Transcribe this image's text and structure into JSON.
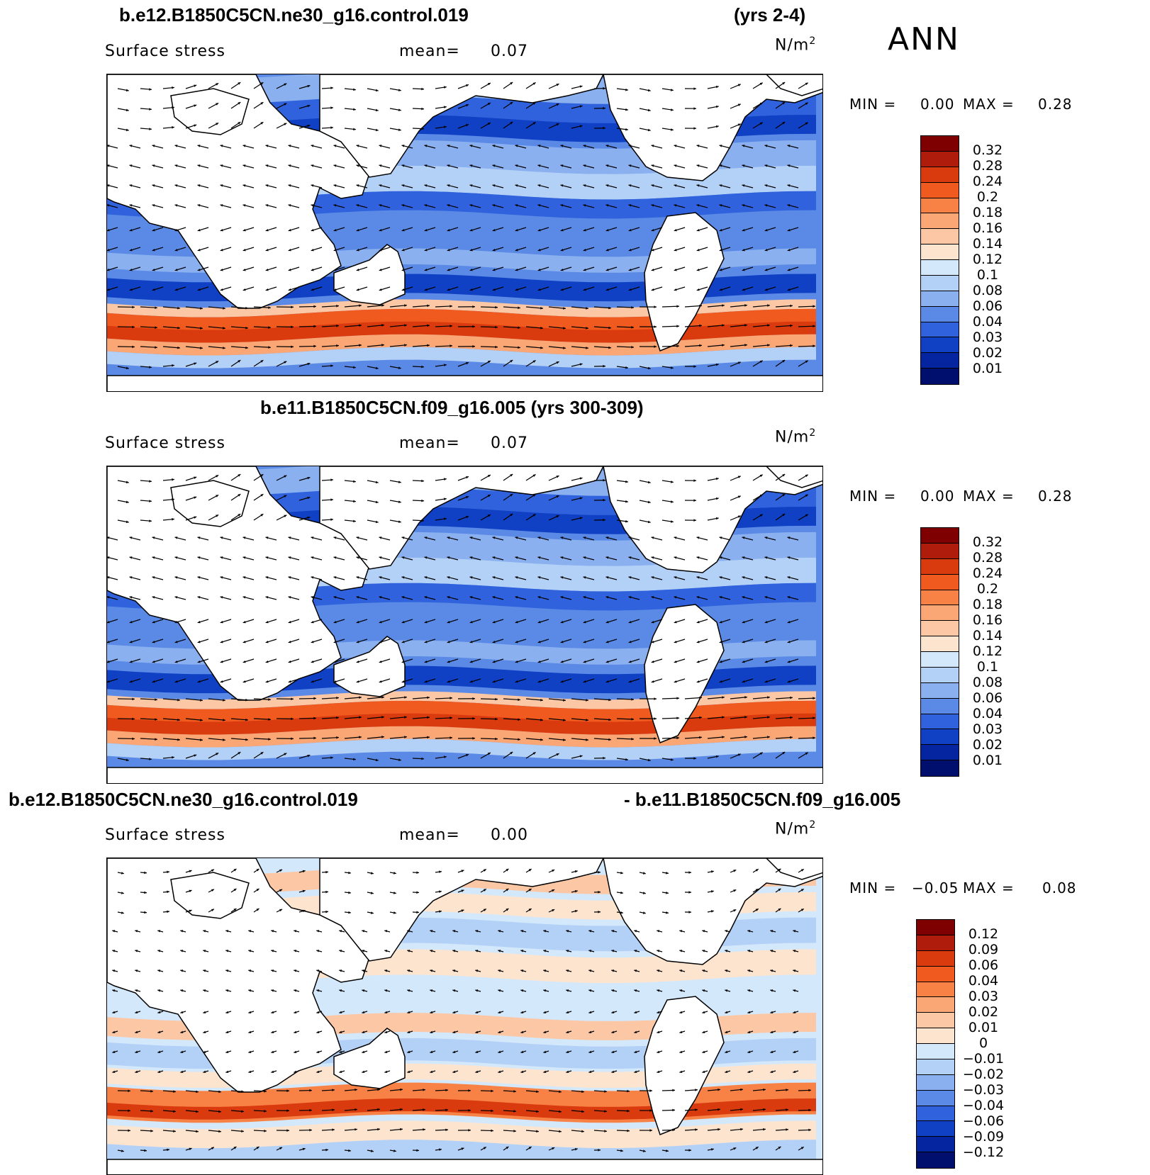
{
  "header": {
    "case1_title": "b.e12.B1850C5CN.ne30_g16.control.019",
    "case1_years": "(yrs 2-4)",
    "season": "ANN"
  },
  "panels": [
    {
      "id": "p1",
      "variable": "Surface stress",
      "mean_label": "mean=",
      "mean_value": "0.07",
      "units": "N/m",
      "units_sup": "2",
      "min_label": "MIN =",
      "min_value": "0.00",
      "max_label": "MAX =",
      "max_value": "0.28",
      "colorbar_ticks": [
        "0.32",
        "0.28",
        "0.24",
        "0.2",
        "0.18",
        "0.16",
        "0.14",
        "0.12",
        "0.1",
        "0.08",
        "0.06",
        "0.04",
        "0.03",
        "0.02",
        "0.01"
      ],
      "colorbar_colors": [
        "#7f0000",
        "#b01c0c",
        "#d93a0e",
        "#f05a1f",
        "#f88245",
        "#fba775",
        "#fcc7a4",
        "#fde4cf",
        "#d4e8fb",
        "#b3d0f6",
        "#8ab0ef",
        "#5a8ae6",
        "#2f62dc",
        "#1040c4",
        "#0424a0",
        "#000e6e"
      ],
      "colormap": "sequential-blue-to-red"
    },
    {
      "id": "p2",
      "title": "b.e11.B1850C5CN.f09_g16.005 (yrs 300-309)",
      "variable": "Surface stress",
      "mean_label": "mean=",
      "mean_value": "0.07",
      "units": "N/m",
      "units_sup": "2",
      "min_label": "MIN =",
      "min_value": "0.00",
      "max_label": "MAX =",
      "max_value": "0.28",
      "colorbar_ticks": [
        "0.32",
        "0.28",
        "0.24",
        "0.2",
        "0.18",
        "0.16",
        "0.14",
        "0.12",
        "0.1",
        "0.08",
        "0.06",
        "0.04",
        "0.03",
        "0.02",
        "0.01"
      ],
      "colorbar_colors": [
        "#7f0000",
        "#b01c0c",
        "#d93a0e",
        "#f05a1f",
        "#f88245",
        "#fba775",
        "#fcc7a4",
        "#fde4cf",
        "#d4e8fb",
        "#b3d0f6",
        "#8ab0ef",
        "#5a8ae6",
        "#2f62dc",
        "#1040c4",
        "#0424a0",
        "#000e6e"
      ],
      "colormap": "sequential-blue-to-red"
    },
    {
      "id": "p3",
      "title_left": "b.e12.B1850C5CN.ne30_g16.control.019",
      "title_right": "- b.e11.B1850C5CN.f09_g16.005",
      "variable": "Surface stress",
      "mean_label": "mean=",
      "mean_value": "0.00",
      "units": "N/m",
      "units_sup": "2",
      "min_label": "MIN =",
      "min_value": "−0.05",
      "max_label": "MAX =",
      "max_value": "0.08",
      "colorbar_ticks": [
        "0.12",
        "0.09",
        "0.06",
        "0.04",
        "0.03",
        "0.02",
        "0.01",
        "0",
        "−0.01",
        "−0.02",
        "−0.03",
        "−0.04",
        "−0.06",
        "−0.09",
        "−0.12"
      ],
      "colorbar_colors": [
        "#7f0000",
        "#b01c0c",
        "#d93a0e",
        "#f05a1f",
        "#f88245",
        "#fba775",
        "#fcc7a4",
        "#fde4cf",
        "#d4e8fb",
        "#b3d0f6",
        "#8ab0ef",
        "#5a8ae6",
        "#2f62dc",
        "#1040c4",
        "#0424a0",
        "#000e6e"
      ],
      "colormap": "diverging-blue-white-red"
    }
  ],
  "map": {
    "land_color": "#ffffff",
    "coast_color": "#000000",
    "ocean_low_color": "#2f62dc",
    "ocean_high_color": "#d93a0e"
  }
}
